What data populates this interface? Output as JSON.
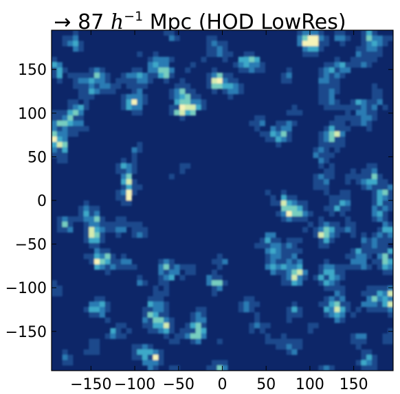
{
  "chart_data": {
    "type": "heatmap",
    "title": {
      "arrow": "→",
      "number": "87",
      "h_symbol": "h",
      "h_exponent": "−1",
      "rest": "Mpc (HOD LowRes)"
    },
    "xlabel": "",
    "ylabel": "",
    "xlim": [
      -195,
      195
    ],
    "ylim": [
      -195,
      195
    ],
    "x_ticks": [
      {
        "value": -150,
        "label": "−150"
      },
      {
        "value": -100,
        "label": "−100"
      },
      {
        "value": -50,
        "label": "−50"
      },
      {
        "value": 0,
        "label": "0"
      },
      {
        "value": 50,
        "label": "50"
      },
      {
        "value": 100,
        "label": "100"
      },
      {
        "value": 150,
        "label": "150"
      }
    ],
    "y_ticks": [
      {
        "value": 150,
        "label": "150"
      },
      {
        "value": 100,
        "label": "100"
      },
      {
        "value": 50,
        "label": "50"
      },
      {
        "value": 0,
        "label": "0"
      },
      {
        "value": -50,
        "label": "−50"
      },
      {
        "value": -100,
        "label": "−100"
      },
      {
        "value": -150,
        "label": "−150"
      }
    ],
    "grid": false,
    "colormap": [
      "#0b2265",
      "#1d4a8c",
      "#2b7bb4",
      "#3da9c9",
      "#77cec0",
      "#d4ebb0",
      "#f7f3b8"
    ],
    "background_color": "#0d2668",
    "grid_cells": 64
  }
}
